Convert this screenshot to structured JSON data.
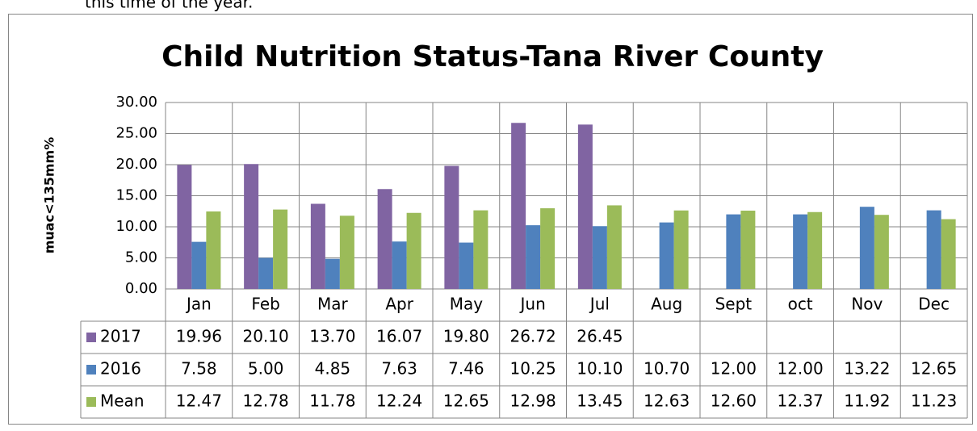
{
  "page_text": "this time of the year.",
  "chart_data": {
    "type": "bar",
    "title": "Child Nutrition Status-Tana River County",
    "y_label": "muac<135mm%",
    "categories": [
      "Jan",
      "Feb",
      "Mar",
      "Apr",
      "May",
      "Jun",
      "Jul",
      "Aug",
      "Sept",
      "oct",
      "Nov",
      "Dec"
    ],
    "series": [
      {
        "name": "2017",
        "color": "#8064a2",
        "values": [
          19.96,
          20.1,
          13.7,
          16.07,
          19.8,
          26.72,
          26.45,
          null,
          null,
          null,
          null,
          null
        ],
        "value_labels": [
          "19.96",
          "20.10",
          "13.70",
          "16.07",
          "19.80",
          "26.72",
          "26.45",
          null,
          null,
          null,
          null,
          null
        ]
      },
      {
        "name": "2016",
        "color": "#4f81bd",
        "values": [
          7.58,
          5,
          4.85,
          7.63,
          7.46,
          10.25,
          10.1,
          10.7,
          12,
          12,
          13.22,
          12.65
        ],
        "value_labels": [
          "7.58",
          "5.00",
          "4.85",
          "7.63",
          "7.46",
          "10.25",
          "10.10",
          "10.70",
          "12.00",
          "12.00",
          "13.22",
          "12.65"
        ]
      },
      {
        "name": "Mean",
        "color": "#9bbb59",
        "values": [
          12.47,
          12.78,
          11.78,
          12.24,
          12.65,
          12.98,
          13.45,
          12.63,
          12.6,
          12.37,
          11.92,
          11.23
        ],
        "value_labels": [
          "12.47",
          "12.78",
          "11.78",
          "12.24",
          "12.65",
          "12.98",
          "13.45",
          "12.63",
          "12.60",
          "12.37",
          "11.92",
          "11.23"
        ]
      }
    ],
    "ylim": [
      0,
      30
    ],
    "yticks": [
      {
        "value": 0,
        "label": "0.00"
      },
      {
        "value": 5,
        "label": "5.00"
      },
      {
        "value": 10,
        "label": "10.00"
      },
      {
        "value": 15,
        "label": "15.00"
      },
      {
        "value": 20,
        "label": "20.00"
      },
      {
        "value": 25,
        "label": "25.00"
      },
      {
        "value": 30,
        "label": "30.00"
      }
    ],
    "grid": true,
    "legend": "table"
  }
}
